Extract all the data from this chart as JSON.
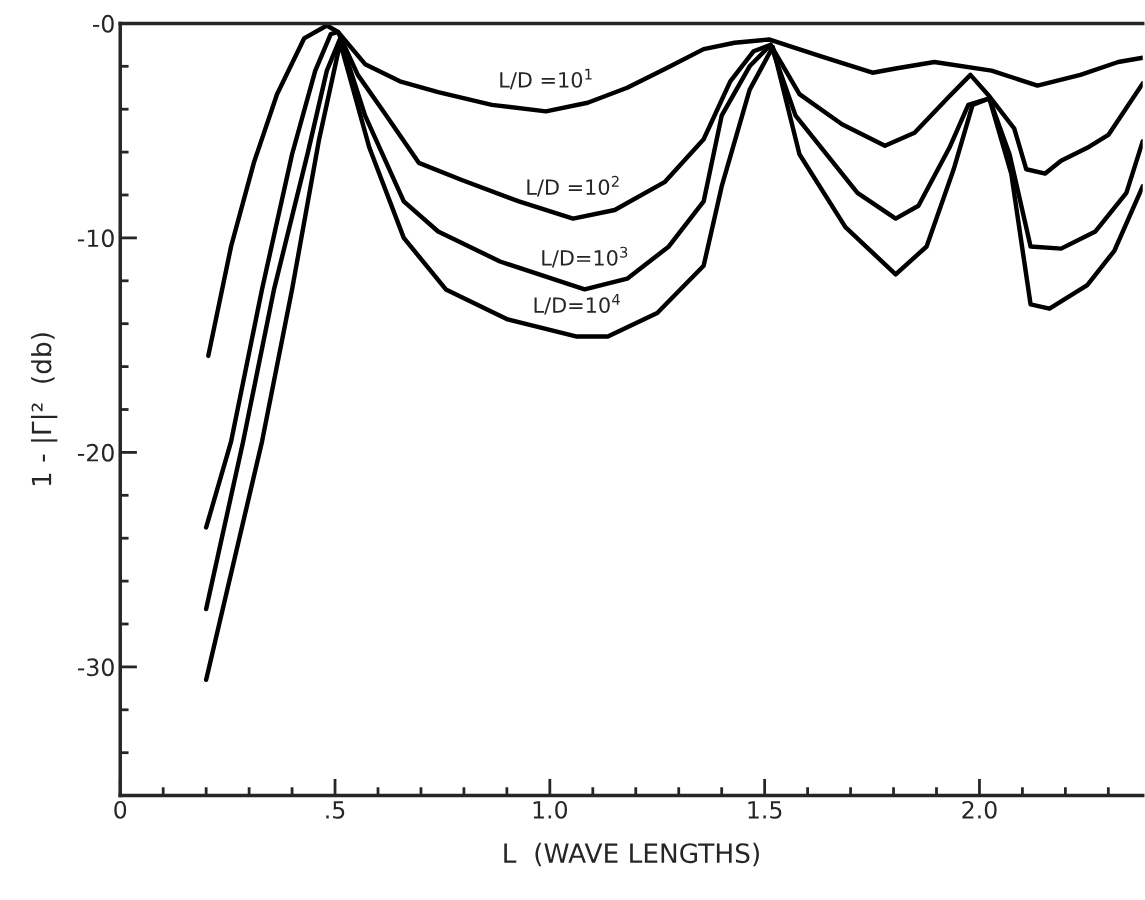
{
  "chart_data": {
    "type": "line",
    "xlabel": "L  (WAVE LENGTHS)",
    "ylabel": "1 - |Γ|²  (db)",
    "xlim": [
      0,
      2.38
    ],
    "ylim": [
      -36,
      0
    ],
    "xticks": [
      0,
      {
        "value": 0.5,
        "label": ".5"
      },
      {
        "value": 1.0,
        "label": "1.0"
      },
      {
        "value": 1.5,
        "label": "1.5"
      },
      {
        "value": 2.0,
        "label": "2.0"
      }
    ],
    "yticks": [
      {
        "value": 0,
        "label": "-0"
      },
      -10,
      -20,
      -30
    ],
    "grid": false,
    "legend": false,
    "marker": "none",
    "line_style": "solid",
    "series": [
      {
        "name": "L/D =10$^{1}$",
        "color": "#000000",
        "x": [
          0.205,
          0.258,
          0.311,
          0.365,
          0.428,
          0.481,
          0.507,
          0.57,
          0.651,
          0.74,
          0.865,
          0.991,
          1.088,
          1.18,
          1.27,
          1.358,
          1.43,
          1.51,
          1.626,
          1.751,
          1.805,
          1.895,
          2.028,
          2.135,
          2.235,
          2.323,
          2.38
        ],
        "values": [
          -15.5,
          -10.4,
          -6.5,
          -3.3,
          -0.7,
          -0.1,
          -0.4,
          -1.9,
          -2.7,
          -3.2,
          -3.8,
          -4.1,
          -3.7,
          -3.0,
          -2.1,
          -1.2,
          -0.9,
          -0.75,
          -1.5,
          -2.3,
          -2.1,
          -1.8,
          -2.2,
          -2.9,
          -2.4,
          -1.8,
          -1.6
        ]
      },
      {
        "name": "L/D =10$^{2}$",
        "color": "#000000",
        "x": [
          0.2,
          0.258,
          0.33,
          0.4,
          0.454,
          0.49,
          0.507,
          0.553,
          0.616,
          0.695,
          0.795,
          0.928,
          1.054,
          1.151,
          1.267,
          1.358,
          1.42,
          1.474,
          1.514,
          1.581,
          1.68,
          1.78,
          1.849,
          1.93,
          1.979,
          2.023,
          2.081,
          2.109,
          2.153,
          2.19,
          2.251,
          2.3,
          2.38
        ],
        "values": [
          -23.5,
          -19.5,
          -12.4,
          -6.1,
          -2.2,
          -0.5,
          -0.4,
          -2.4,
          -4.2,
          -6.5,
          -7.3,
          -8.3,
          -9.1,
          -8.7,
          -7.4,
          -5.4,
          -2.7,
          -1.3,
          -1.0,
          -3.3,
          -4.7,
          -5.7,
          -5.1,
          -3.4,
          -2.4,
          -3.4,
          -4.9,
          -6.8,
          -7.0,
          -6.4,
          -5.8,
          -5.2,
          -2.8
        ]
      },
      {
        "name": "L/D=10$^{3}$",
        "color": "#000000",
        "x": [
          0.2,
          0.286,
          0.358,
          0.437,
          0.481,
          0.512,
          0.57,
          0.66,
          0.74,
          0.884,
          1.081,
          1.18,
          1.277,
          1.358,
          1.4,
          1.465,
          1.514,
          1.572,
          1.716,
          1.805,
          1.858,
          1.93,
          1.974,
          2.023,
          2.07,
          2.119,
          2.19,
          2.27,
          2.342,
          2.38
        ],
        "values": [
          -27.3,
          -19.5,
          -12.4,
          -6.0,
          -2.2,
          -0.7,
          -4.3,
          -8.3,
          -9.7,
          -11.1,
          -12.4,
          -11.9,
          -10.4,
          -8.3,
          -4.3,
          -2.0,
          -1.0,
          -4.3,
          -7.9,
          -9.1,
          -8.5,
          -5.8,
          -3.8,
          -3.5,
          -6.1,
          -10.4,
          -10.5,
          -9.7,
          -7.9,
          -5.5
        ]
      },
      {
        "name": "L/D=10$^{4}$",
        "color": "#000000",
        "x": [
          0.2,
          0.33,
          0.4,
          0.463,
          0.512,
          0.58,
          0.66,
          0.758,
          0.902,
          1.063,
          1.135,
          1.25,
          1.358,
          1.4,
          1.465,
          1.519,
          1.581,
          1.688,
          1.805,
          1.877,
          1.94,
          1.984,
          2.023,
          2.074,
          2.119,
          2.163,
          2.251,
          2.314,
          2.38
        ],
        "values": [
          -30.6,
          -19.5,
          -12.4,
          -5.4,
          -0.9,
          -5.8,
          -10.0,
          -12.4,
          -13.8,
          -14.6,
          -14.6,
          -13.5,
          -11.3,
          -7.6,
          -3.1,
          -1.1,
          -6.1,
          -9.5,
          -11.7,
          -10.4,
          -6.8,
          -3.8,
          -3.5,
          -7.0,
          -13.1,
          -13.3,
          -12.2,
          -10.6,
          -7.6
        ]
      }
    ]
  }
}
